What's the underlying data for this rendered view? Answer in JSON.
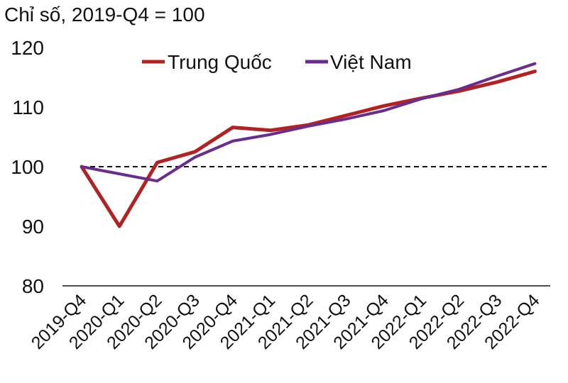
{
  "chart_data": {
    "type": "line",
    "unit_label": "Chỉ số, 2019-Q4 = 100",
    "categories": [
      "2019-Q4",
      "2020-Q1",
      "2020-Q2",
      "2020-Q3",
      "2020-Q4",
      "2021-Q1",
      "2021-Q2",
      "2021-Q3",
      "2021-Q4",
      "2022-Q1",
      "2022-Q2",
      "2022-Q3",
      "2022-Q4"
    ],
    "series": [
      {
        "name": "Trung Quốc",
        "color": "#b22222",
        "values": [
          100,
          90.0,
          100.7,
          102.5,
          106.6,
          106.1,
          107.0,
          108.6,
          110.2,
          111.5,
          112.7,
          114.2,
          116.0
        ]
      },
      {
        "name": "Việt Nam",
        "color": "#6a2c8e",
        "values": [
          100,
          98.8,
          97.6,
          101.6,
          104.3,
          105.4,
          106.8,
          108.0,
          109.4,
          111.4,
          113.0,
          115.2,
          117.3
        ]
      }
    ],
    "yticks": [
      80,
      90,
      100,
      110,
      120
    ],
    "ylim": [
      80,
      120
    ],
    "reference_line": 100,
    "reference_line_style": "dashed",
    "grid": false,
    "legend_position": "top"
  }
}
